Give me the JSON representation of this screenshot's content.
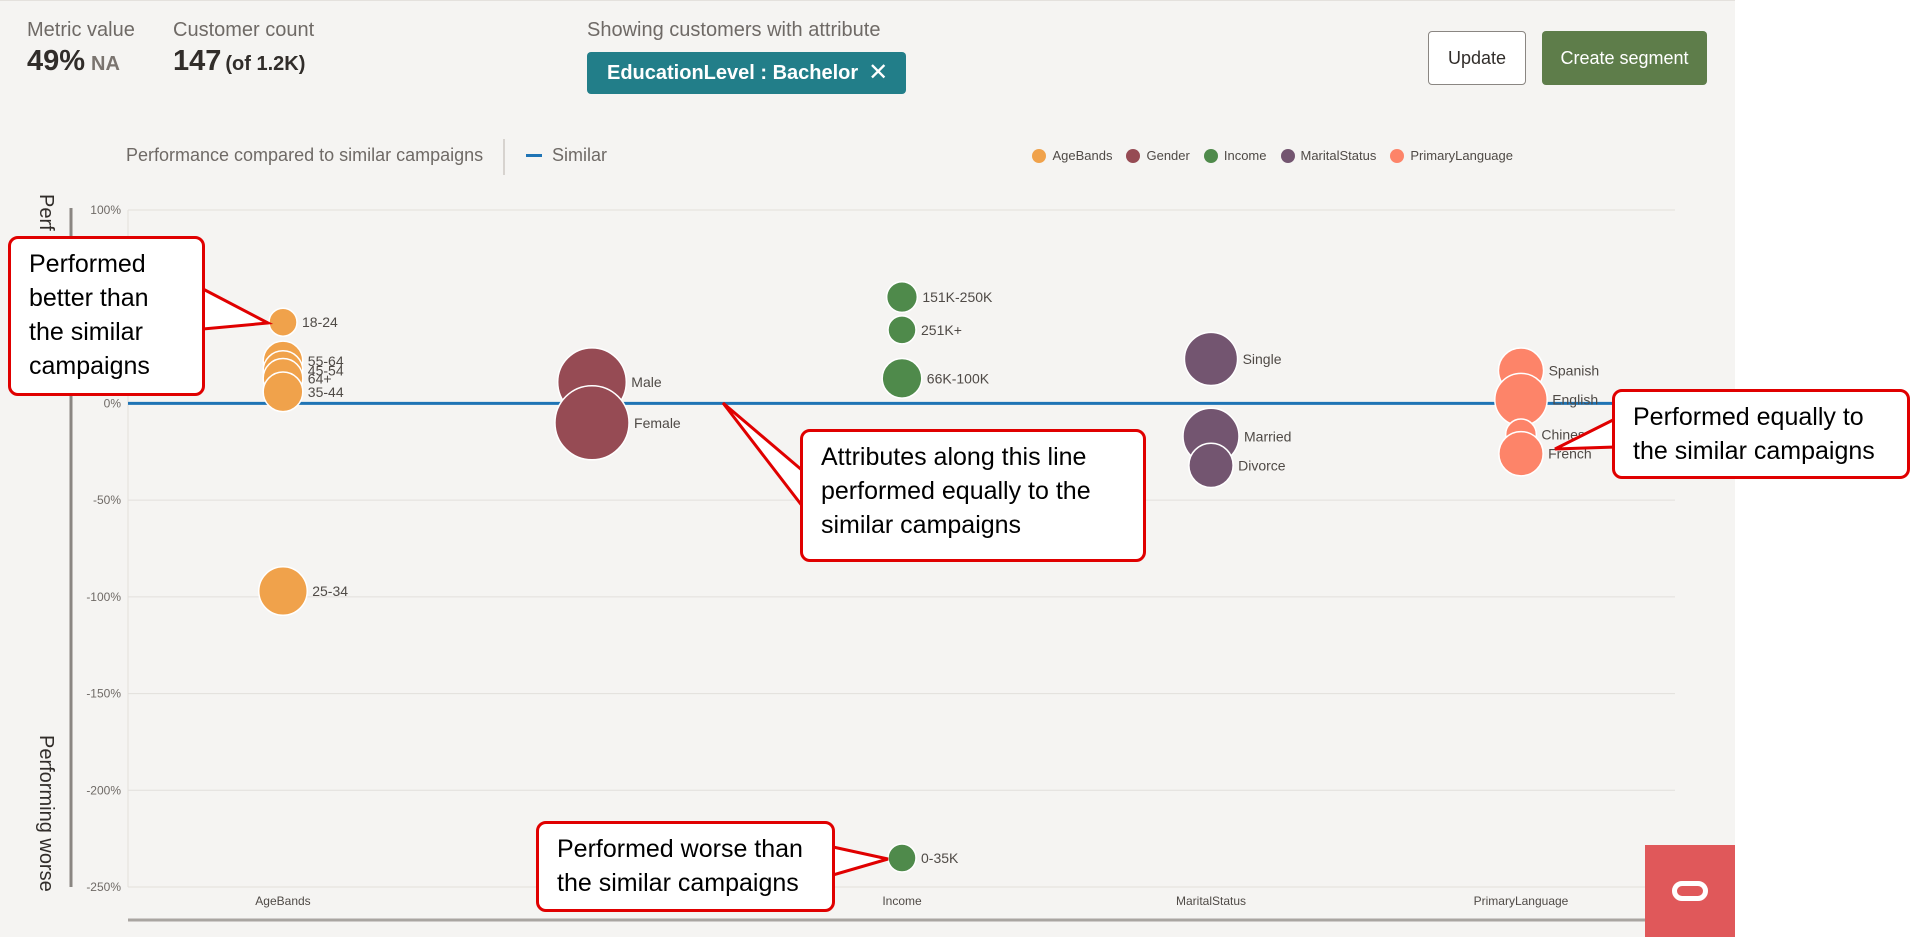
{
  "header": {
    "metric_label": "Metric value",
    "metric_value": "49%",
    "metric_sub": "NA",
    "count_label": "Customer count",
    "count_value": "147",
    "count_of": "(of 1.2K)",
    "filter_label": "Showing customers with attribute",
    "filter_chip": "EducationLevel : Bachelor",
    "filter_close_icon": "close-icon",
    "update_label": "Update",
    "create_label": "Create segment"
  },
  "chart_header": {
    "title": "Performance compared to similar campaigns",
    "similar_label": "Similar",
    "similar_color": "#1f74b5"
  },
  "legend": [
    {
      "name": "AgeBands",
      "color": "#f0a24b"
    },
    {
      "name": "Gender",
      "color": "#964b54"
    },
    {
      "name": "Income",
      "color": "#4f8a4b"
    },
    {
      "name": "MaritalStatus",
      "color": "#735570"
    },
    {
      "name": "PrimaryLanguage",
      "color": "#fd8469"
    }
  ],
  "chart_data": {
    "type": "scatter",
    "categories": [
      "AgeBands",
      "Gender",
      "Income",
      "MaritalStatus",
      "PrimaryLanguage"
    ],
    "x_tick_labels": [
      "AgeBands",
      "",
      "Income",
      "MaritalStatus",
      "PrimaryLanguage"
    ],
    "ylabel_top": "Perf",
    "ylabel_bottom": "Performing worse",
    "ylim": [
      -250,
      100
    ],
    "yticks": [
      {
        "v": 100,
        "label": "100%"
      },
      {
        "v": 0,
        "label": "0%"
      },
      {
        "v": -50,
        "label": "-50%"
      },
      {
        "v": -100,
        "label": "-100%"
      },
      {
        "v": -150,
        "label": "-150%"
      },
      {
        "v": -200,
        "label": "-200%"
      },
      {
        "v": -250,
        "label": "-250%"
      }
    ],
    "grid": true,
    "reference_line": {
      "name": "Similar",
      "value": 0
    },
    "series": [
      {
        "name": "AgeBands",
        "points": [
          {
            "label": "18-24",
            "y": 42,
            "size": 1
          },
          {
            "label": "55-64",
            "y": 22,
            "size": 2
          },
          {
            "label": "45-54",
            "y": 17,
            "size": 2
          },
          {
            "label": "64+",
            "y": 13,
            "size": 2
          },
          {
            "label": "35-44",
            "y": 6,
            "size": 2
          },
          {
            "label": "25-34",
            "y": -97,
            "size": 3
          }
        ]
      },
      {
        "name": "Gender",
        "points": [
          {
            "label": "Male",
            "y": 11,
            "size": 6
          },
          {
            "label": "Female",
            "y": -10,
            "size": 7
          }
        ]
      },
      {
        "name": "Income",
        "points": [
          {
            "label": "151K-250K",
            "y": 55,
            "size": 1.2
          },
          {
            "label": "251K+",
            "y": 38,
            "size": 1
          },
          {
            "label": "66K-100K",
            "y": 13,
            "size": 2
          },
          {
            "label": "0-35K",
            "y": -235,
            "size": 1
          }
        ]
      },
      {
        "name": "MaritalStatus",
        "points": [
          {
            "label": "Single",
            "y": 23,
            "size": 3.6
          },
          {
            "label": "Married",
            "y": -17,
            "size": 4
          },
          {
            "label": "Divorce",
            "y": -32,
            "size": 2.5
          }
        ]
      },
      {
        "name": "PrimaryLanguage",
        "points": [
          {
            "label": "Spanish",
            "y": 17,
            "size": 2.6
          },
          {
            "label": "English",
            "y": 2,
            "size": 3.5
          },
          {
            "label": "Chinese",
            "y": -16,
            "size": 1.2
          },
          {
            "label": "French",
            "y": -26,
            "size": 2.5
          }
        ]
      }
    ]
  },
  "callouts": {
    "better": "Performed better than the similar campaigns",
    "line": "Attributes along this line performed equally to the similar campaigns",
    "equal": "Performed equally to the similar campaigns",
    "worse": "Performed worse than the similar campaigns"
  },
  "badge_icon": "oracle-icon"
}
